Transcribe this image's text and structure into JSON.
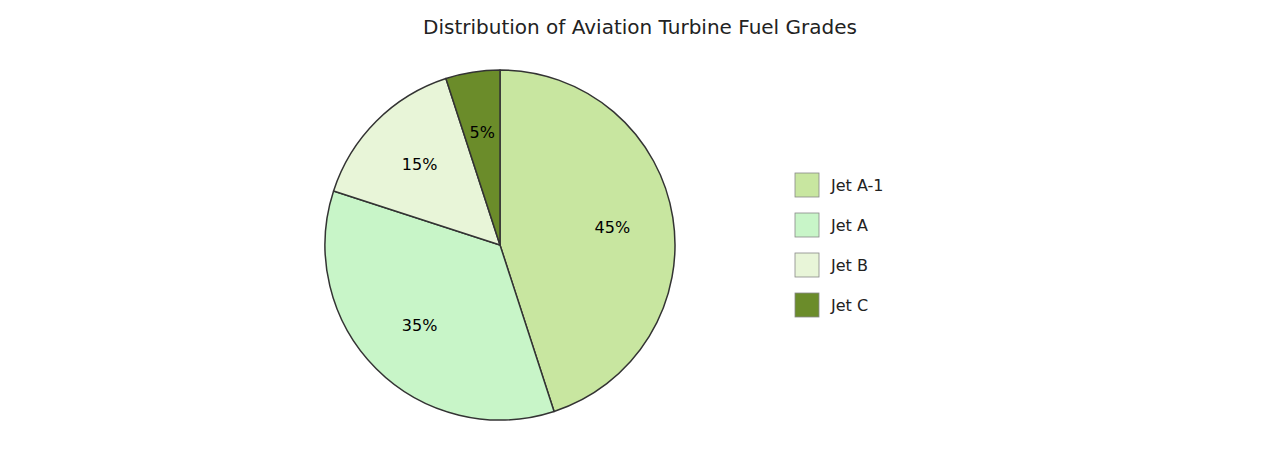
{
  "chart_data": {
    "type": "pie",
    "title": "Distribution of Aviation Turbine Fuel Grades",
    "categories": [
      "Jet A-1",
      "Jet A",
      "Jet B",
      "Jet C"
    ],
    "values": [
      45,
      35,
      15,
      5
    ],
    "value_labels": [
      "45%",
      "35%",
      "15%",
      "5%"
    ],
    "colors": [
      "#c8e6a0",
      "#c8f5c8",
      "#e8f5d8",
      "#6b8c2a"
    ],
    "data_labels": true,
    "legend": "right"
  }
}
